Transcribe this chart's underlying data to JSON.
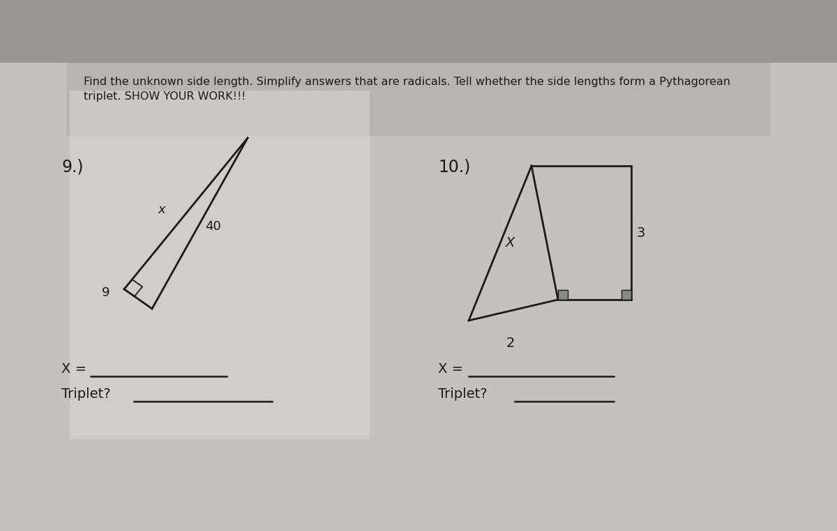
{
  "bg_top": "#b8b4ae",
  "bg_main": "#c8c4be",
  "paper_white": "#e8e6e2",
  "header_bg": "#b0aca6",
  "title_text_line1": "Find the unknown side length. Simplify answers that are radicals. Tell whether the side lengths form a Pythagorean",
  "title_text_line2": "triplet. SHOW YOUR WORK!!!",
  "q9_label": "9.)",
  "q10_label": "10.)",
  "q9_x_label": "x",
  "q9_40_label": "40",
  "q9_9_label": "9",
  "q10_X_label": "X",
  "q10_3_label": "3",
  "q10_2_label": "2",
  "x_eq_label": "X =",
  "triplet_label": "Triplet?",
  "line_color": "#1a1a1a",
  "text_color": "#1a1a1a",
  "sq_color": "#888880"
}
